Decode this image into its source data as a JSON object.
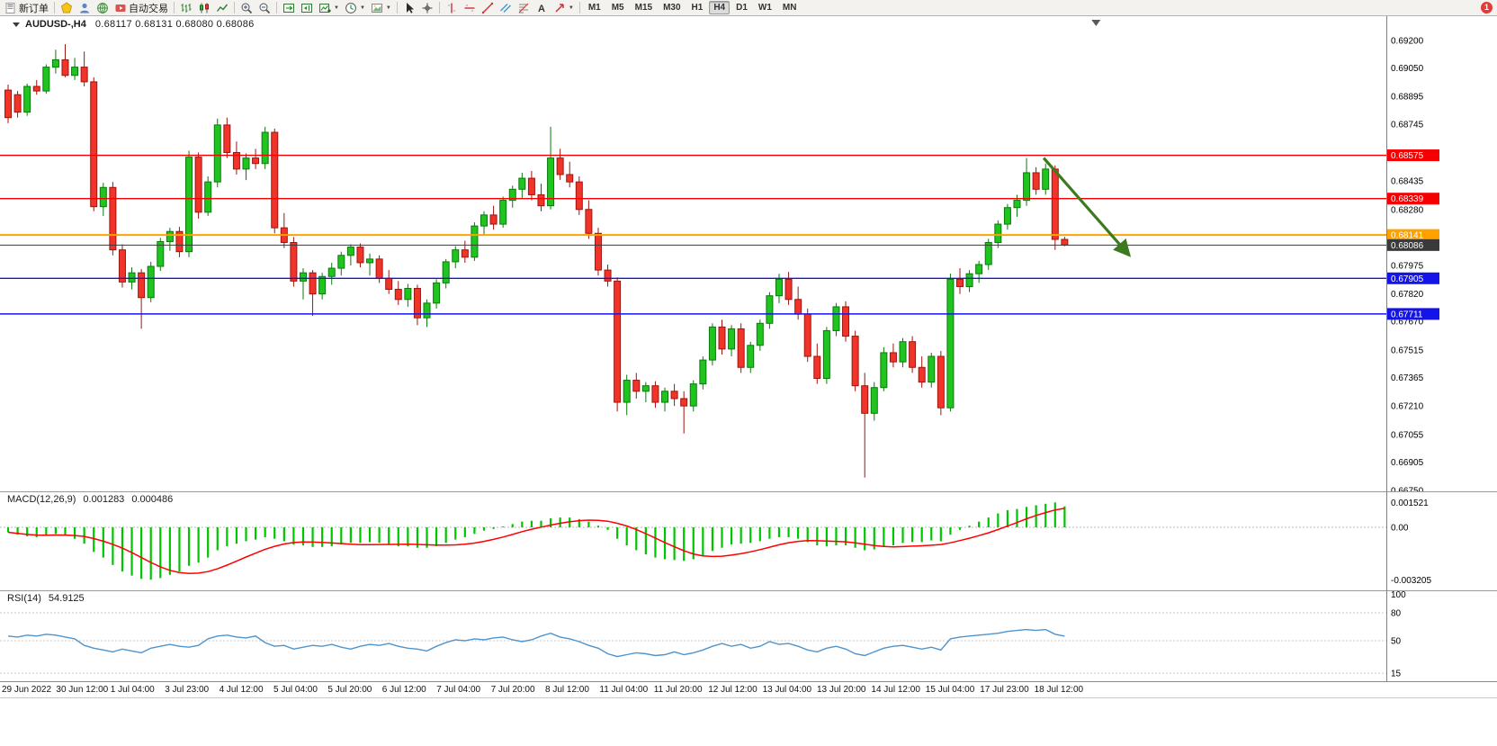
{
  "window": {
    "badge_count": "1",
    "badge_color": "#e53935"
  },
  "toolbar": {
    "items": [
      {
        "type": "button",
        "name": "new-order-button",
        "icon": "new-order-icon",
        "label": "新订单"
      },
      {
        "type": "sep"
      },
      {
        "type": "button",
        "name": "metaeditor-button",
        "icon": "editor-icon"
      },
      {
        "type": "button",
        "name": "navigator-button",
        "icon": "navigator-icon"
      },
      {
        "type": "button",
        "name": "terminal-button",
        "icon": "terminal-icon"
      },
      {
        "type": "button",
        "name": "autotrading-button",
        "icon": "autotrading-icon",
        "label": "自动交易"
      },
      {
        "type": "sep"
      },
      {
        "type": "button",
        "name": "bar-chart-button",
        "icon": "bar-chart-icon"
      },
      {
        "type": "button",
        "name": "candlestick-chart-button",
        "icon": "candlestick-icon"
      },
      {
        "type": "button",
        "name": "line-chart-button",
        "icon": "line-chart-icon"
      },
      {
        "type": "sep"
      },
      {
        "type": "button",
        "name": "zoom-in-button",
        "icon": "zoom-in-icon"
      },
      {
        "type": "button",
        "name": "zoom-out-button",
        "icon": "zoom-out-icon"
      },
      {
        "type": "sep"
      },
      {
        "type": "button",
        "name": "auto-scroll-button",
        "icon": "auto-scroll-icon"
      },
      {
        "type": "button",
        "name": "chart-shift-button",
        "icon": "chart-shift-icon"
      },
      {
        "type": "button",
        "name": "indicators-button",
        "icon": "indicators-icon",
        "dropdown": true
      },
      {
        "type": "button",
        "name": "periods-button",
        "icon": "periods-icon",
        "dropdown": true
      },
      {
        "type": "button",
        "name": "templates-button",
        "icon": "templates-icon",
        "dropdown": true
      },
      {
        "type": "sep"
      },
      {
        "type": "button",
        "name": "cursor-button",
        "icon": "cursor-icon"
      },
      {
        "type": "button",
        "name": "crosshair-button",
        "icon": "crosshair-icon"
      },
      {
        "type": "sep"
      },
      {
        "type": "button",
        "name": "vertical-line-button",
        "icon": "vline-icon"
      },
      {
        "type": "button",
        "name": "horizontal-line-button",
        "icon": "hline-icon"
      },
      {
        "type": "button",
        "name": "trendline-button",
        "icon": "trendline-icon"
      },
      {
        "type": "button",
        "name": "channel-button",
        "icon": "channel-icon"
      },
      {
        "type": "button",
        "name": "fibonacci-button",
        "icon": "fibonacci-icon"
      },
      {
        "type": "button",
        "name": "text-button",
        "icon": "text-icon"
      },
      {
        "type": "button",
        "name": "arrows-button",
        "icon": "arrows-icon",
        "dropdown": true
      },
      {
        "type": "sep"
      }
    ],
    "timeframes": [
      "M1",
      "M5",
      "M15",
      "M30",
      "H1",
      "H4",
      "D1",
      "W1",
      "MN"
    ],
    "active_timeframe": "H4"
  },
  "chart": {
    "title": "AUDUSD-,H4",
    "ohlc": "0.68117  0.68131  0.68080  0.68086"
  },
  "chart_data": {
    "type": "candlestick",
    "symbol": "AUDUSD",
    "period": "H4",
    "current_ohlc": {
      "open": 0.68117,
      "high": 0.68131,
      "low": 0.6808,
      "close": 0.68086
    },
    "colors": {
      "up": "#1fc41f",
      "up_stroke": "#0b7a0b",
      "down": "#f1342a",
      "down_stroke": "#9e150e",
      "macd": "#00c400",
      "macd_signal": "#ff0000",
      "rsi": "#4f94cd",
      "arrow": "#3d7a1f"
    },
    "price_axis": {
      "labels": [
        "0.69200",
        "0.69050",
        "0.68895",
        "0.68745",
        "0.68435",
        "0.68280",
        "0.67975",
        "0.67820",
        "0.67670",
        "0.67515",
        "0.67365",
        "0.67210",
        "0.67055",
        "0.66905",
        "0.66750"
      ]
    },
    "hlines": [
      {
        "name": "resistance-line-1",
        "price": 0.68575,
        "label": "0.68575",
        "color": "#f40000",
        "width": 1.4,
        "current": false
      },
      {
        "name": "resistance-line-2",
        "price": 0.68339,
        "label": "0.68339",
        "color": "#f40000",
        "width": 1.4,
        "current": false
      },
      {
        "name": "pivot-line",
        "price": 0.68141,
        "label": "0.68141",
        "color": "#ffa200",
        "width": 2,
        "current": false
      },
      {
        "name": "current-price-line",
        "price": 0.68086,
        "label": "0.68086",
        "color": "#3a3a3a",
        "width": 1,
        "current": true
      },
      {
        "name": "support-line-1",
        "price": 0.67905,
        "label": "0.67905",
        "color": "#1414e8",
        "width": 1.4,
        "current": false
      },
      {
        "name": "support-line-2",
        "price": 0.67711,
        "label": "0.67711",
        "color": "#1414e8",
        "width": 1.4,
        "current": false
      }
    ],
    "candles": [
      [
        0.6893,
        0.6896,
        0.6875,
        0.6878
      ],
      [
        0.68905,
        0.68925,
        0.6878,
        0.6881
      ],
      [
        0.6881,
        0.68965,
        0.6879,
        0.6895
      ],
      [
        0.6895,
        0.68985,
        0.68905,
        0.68925
      ],
      [
        0.68925,
        0.6907,
        0.6891,
        0.69055
      ],
      [
        0.69055,
        0.6915,
        0.6902,
        0.69095
      ],
      [
        0.69095,
        0.6918,
        0.69,
        0.6901
      ],
      [
        0.6901,
        0.69105,
        0.68985,
        0.69055
      ],
      [
        0.69055,
        0.6914,
        0.6895,
        0.68975
      ],
      [
        0.68975,
        0.69,
        0.6827,
        0.68295
      ],
      [
        0.68295,
        0.68425,
        0.68245,
        0.684
      ],
      [
        0.684,
        0.6843,
        0.6803,
        0.6806
      ],
      [
        0.6806,
        0.6809,
        0.67855,
        0.67885
      ],
      [
        0.67885,
        0.67965,
        0.67845,
        0.67935
      ],
      [
        0.67935,
        0.67955,
        0.6763,
        0.678
      ],
      [
        0.678,
        0.67995,
        0.67775,
        0.6797
      ],
      [
        0.6797,
        0.68125,
        0.67945,
        0.68105
      ],
      [
        0.68105,
        0.6818,
        0.68055,
        0.6816
      ],
      [
        0.6816,
        0.68185,
        0.6802,
        0.6805
      ],
      [
        0.6805,
        0.686,
        0.6802,
        0.68565
      ],
      [
        0.68565,
        0.6859,
        0.6823,
        0.68265
      ],
      [
        0.68265,
        0.6846,
        0.68245,
        0.6843
      ],
      [
        0.6843,
        0.68775,
        0.684,
        0.6874
      ],
      [
        0.6874,
        0.6878,
        0.6856,
        0.6859
      ],
      [
        0.6859,
        0.6865,
        0.6847,
        0.685
      ],
      [
        0.685,
        0.68585,
        0.6844,
        0.6856
      ],
      [
        0.6856,
        0.6861,
        0.685,
        0.6853
      ],
      [
        0.6853,
        0.6873,
        0.685,
        0.687
      ],
      [
        0.687,
        0.6872,
        0.6815,
        0.6818
      ],
      [
        0.6818,
        0.6826,
        0.6807,
        0.681
      ],
      [
        0.681,
        0.6813,
        0.6786,
        0.6789
      ],
      [
        0.6789,
        0.6796,
        0.6779,
        0.67935
      ],
      [
        0.67935,
        0.6795,
        0.677,
        0.6782
      ],
      [
        0.6782,
        0.67935,
        0.6779,
        0.67915
      ],
      [
        0.67915,
        0.6799,
        0.6787,
        0.6796
      ],
      [
        0.6796,
        0.6805,
        0.6792,
        0.6803
      ],
      [
        0.6803,
        0.6809,
        0.67975,
        0.68075
      ],
      [
        0.68075,
        0.68095,
        0.67965,
        0.6799
      ],
      [
        0.6799,
        0.6804,
        0.6792,
        0.6801
      ],
      [
        0.6801,
        0.6803,
        0.6788,
        0.67905
      ],
      [
        0.67905,
        0.6795,
        0.6782,
        0.67845
      ],
      [
        0.67845,
        0.6789,
        0.6776,
        0.6779
      ],
      [
        0.6779,
        0.67875,
        0.6775,
        0.6785
      ],
      [
        0.6785,
        0.6787,
        0.6765,
        0.6769
      ],
      [
        0.6769,
        0.6779,
        0.6764,
        0.6777
      ],
      [
        0.6777,
        0.679,
        0.6774,
        0.6788
      ],
      [
        0.6788,
        0.6801,
        0.6785,
        0.67995
      ],
      [
        0.67995,
        0.6808,
        0.6796,
        0.6806
      ],
      [
        0.6806,
        0.6811,
        0.6799,
        0.6802
      ],
      [
        0.6802,
        0.6821,
        0.68,
        0.6819
      ],
      [
        0.6819,
        0.6827,
        0.6814,
        0.6825
      ],
      [
        0.6825,
        0.683,
        0.6817,
        0.682
      ],
      [
        0.682,
        0.6835,
        0.6818,
        0.6833
      ],
      [
        0.6833,
        0.6841,
        0.6829,
        0.6839
      ],
      [
        0.6839,
        0.6848,
        0.6834,
        0.6845
      ],
      [
        0.6845,
        0.6849,
        0.6833,
        0.6836
      ],
      [
        0.6836,
        0.6842,
        0.6827,
        0.683
      ],
      [
        0.683,
        0.6873,
        0.6828,
        0.6856
      ],
      [
        0.6856,
        0.6861,
        0.6844,
        0.6847
      ],
      [
        0.6847,
        0.6854,
        0.684,
        0.6843
      ],
      [
        0.6843,
        0.6846,
        0.6825,
        0.6828
      ],
      [
        0.6828,
        0.6833,
        0.6812,
        0.6815
      ],
      [
        0.6815,
        0.6818,
        0.6792,
        0.6795
      ],
      [
        0.6795,
        0.6798,
        0.6786,
        0.6789
      ],
      [
        0.6789,
        0.6791,
        0.6718,
        0.6723
      ],
      [
        0.6723,
        0.6738,
        0.6716,
        0.6735
      ],
      [
        0.6735,
        0.6739,
        0.6725,
        0.6729
      ],
      [
        0.6729,
        0.6734,
        0.6723,
        0.6732
      ],
      [
        0.6732,
        0.67345,
        0.672,
        0.6723
      ],
      [
        0.6723,
        0.6731,
        0.6718,
        0.6729
      ],
      [
        0.6729,
        0.6733,
        0.6721,
        0.6725
      ],
      [
        0.6725,
        0.6729,
        0.6706,
        0.6721
      ],
      [
        0.6721,
        0.6735,
        0.6718,
        0.6733
      ],
      [
        0.6733,
        0.6748,
        0.673,
        0.6746
      ],
      [
        0.6746,
        0.6766,
        0.6743,
        0.6764
      ],
      [
        0.6764,
        0.6768,
        0.6749,
        0.6752
      ],
      [
        0.6752,
        0.6765,
        0.6748,
        0.6763
      ],
      [
        0.6763,
        0.6766,
        0.6739,
        0.6742
      ],
      [
        0.6742,
        0.6756,
        0.6739,
        0.6754
      ],
      [
        0.6754,
        0.6768,
        0.6751,
        0.6766
      ],
      [
        0.6766,
        0.6783,
        0.6763,
        0.6781
      ],
      [
        0.6781,
        0.6793,
        0.6777,
        0.679
      ],
      [
        0.679,
        0.6794,
        0.6776,
        0.6779
      ],
      [
        0.6779,
        0.6786,
        0.6768,
        0.6771
      ],
      [
        0.6771,
        0.6774,
        0.6745,
        0.6748
      ],
      [
        0.6748,
        0.6755,
        0.6733,
        0.6736
      ],
      [
        0.6736,
        0.6764,
        0.6733,
        0.6762
      ],
      [
        0.6762,
        0.6777,
        0.6759,
        0.6775
      ],
      [
        0.6775,
        0.6778,
        0.6756,
        0.6759
      ],
      [
        0.6759,
        0.6762,
        0.6729,
        0.6732
      ],
      [
        0.6732,
        0.6739,
        0.6682,
        0.6717
      ],
      [
        0.6717,
        0.6734,
        0.6713,
        0.6731
      ],
      [
        0.6731,
        0.6753,
        0.6729,
        0.675
      ],
      [
        0.675,
        0.6755,
        0.6742,
        0.6745
      ],
      [
        0.6745,
        0.6758,
        0.6742,
        0.6756
      ],
      [
        0.6756,
        0.6759,
        0.6739,
        0.6742
      ],
      [
        0.6742,
        0.6748,
        0.6731,
        0.6734
      ],
      [
        0.6734,
        0.675,
        0.6731,
        0.6748
      ],
      [
        0.6748,
        0.6751,
        0.6716,
        0.672
      ],
      [
        0.672,
        0.6793,
        0.6718,
        0.679
      ],
      [
        0.679,
        0.6796,
        0.6782,
        0.6786
      ],
      [
        0.6786,
        0.6795,
        0.6783,
        0.6793
      ],
      [
        0.6793,
        0.68,
        0.6788,
        0.6798
      ],
      [
        0.6798,
        0.6812,
        0.6795,
        0.681
      ],
      [
        0.681,
        0.6822,
        0.6807,
        0.682
      ],
      [
        0.682,
        0.6831,
        0.6817,
        0.6829
      ],
      [
        0.6829,
        0.6836,
        0.6824,
        0.6833
      ],
      [
        0.6833,
        0.6856,
        0.683,
        0.6848
      ],
      [
        0.6848,
        0.6851,
        0.6836,
        0.6839
      ],
      [
        0.6839,
        0.6853,
        0.6836,
        0.685
      ],
      [
        0.685,
        0.6852,
        0.6806,
        0.68117
      ],
      [
        0.68117,
        0.68131,
        0.6808,
        0.68086
      ]
    ],
    "shift_marker_bar": 114.3,
    "annotation_arrow": {
      "from_bar": 108.8,
      "from_price": 0.6856,
      "to_bar": 117.8,
      "to_price": 0.6803
    },
    "macd": {
      "title": "MACD(12,26,9)",
      "value_main": "0.001283",
      "value_signal": "0.000486",
      "scale_labels": [
        {
          "label": "0.001521",
          "value": 0.001521
        },
        {
          "label": "0.00",
          "value": 0
        },
        {
          "label": "-0.003205",
          "value": -0.003205
        }
      ],
      "hist": [
        -0.0003,
        -0.00045,
        -0.00055,
        -0.0006,
        -0.0005,
        -0.0004,
        -0.0005,
        -0.0007,
        -0.001,
        -0.0015,
        -0.00185,
        -0.0023,
        -0.0027,
        -0.00295,
        -0.00315,
        -0.0032,
        -0.0031,
        -0.0029,
        -0.0027,
        -0.00235,
        -0.00215,
        -0.00185,
        -0.0014,
        -0.00115,
        -0.001,
        -0.00085,
        -0.00075,
        -0.0006,
        -0.0007,
        -0.00085,
        -0.00105,
        -0.0011,
        -0.0012,
        -0.0012,
        -0.00115,
        -0.00105,
        -0.00095,
        -0.00095,
        -0.0009,
        -0.00095,
        -0.00105,
        -0.00115,
        -0.00115,
        -0.00125,
        -0.00125,
        -0.00115,
        -0.00095,
        -0.00075,
        -0.0006,
        -0.0004,
        -0.0002,
        -0.0001,
        5e-05,
        0.0002,
        0.00035,
        0.0004,
        0.0004,
        0.00055,
        0.0006,
        0.0006,
        0.0005,
        0.00035,
        0.0001,
        -0.00015,
        -0.0007,
        -0.0011,
        -0.0014,
        -0.00165,
        -0.00185,
        -0.00195,
        -0.002,
        -0.00205,
        -0.00195,
        -0.00175,
        -0.00145,
        -0.00125,
        -0.00105,
        -0.001,
        -0.00095,
        -0.00085,
        -0.0007,
        -0.0006,
        -0.0006,
        -0.0007,
        -0.0009,
        -0.0011,
        -0.00115,
        -0.0011,
        -0.0011,
        -0.00125,
        -0.0014,
        -0.00135,
        -0.0012,
        -0.0011,
        -0.00095,
        -0.0009,
        -0.0009,
        -0.0008,
        -0.00085,
        -0.00045,
        -0.00015,
        0.0001,
        0.00035,
        0.0006,
        0.00085,
        0.00105,
        0.00112,
        0.00125,
        0.00135,
        0.00144,
        0.001521,
        0.001283
      ]
    },
    "rsi": {
      "title": "RSI(14)",
      "value": "54.9125",
      "levels": [
        80,
        50,
        15
      ],
      "scale_labels": [
        {
          "label": "100",
          "value": 100
        },
        {
          "label": "80",
          "value": 80
        },
        {
          "label": "50",
          "value": 50
        },
        {
          "label": "15",
          "value": 15
        }
      ],
      "series": [
        55,
        54,
        56,
        55,
        57,
        56,
        54,
        52,
        45,
        42,
        40,
        38,
        41,
        39,
        37,
        42,
        44,
        46,
        44,
        43,
        45,
        52,
        55,
        56,
        54,
        53,
        55,
        48,
        44,
        45,
        41,
        43,
        45,
        44,
        46,
        43,
        41,
        44,
        46,
        45,
        47,
        44,
        42,
        41,
        39,
        44,
        48,
        51,
        50,
        52,
        51,
        53,
        54,
        51,
        49,
        51,
        55,
        58,
        54,
        52,
        49,
        45,
        42,
        36,
        33,
        35,
        37,
        36,
        34,
        35,
        38,
        35,
        37,
        40,
        44,
        47,
        44,
        46,
        42,
        44,
        49,
        46,
        47,
        44,
        40,
        38,
        42,
        44,
        41,
        36,
        34,
        38,
        42,
        44,
        45,
        43,
        41,
        43,
        40,
        52,
        54,
        55,
        56,
        57,
        58,
        60,
        61,
        62,
        61,
        62,
        57,
        54.9
      ]
    },
    "time_axis": [
      "29 Jun 2022",
      "30 Jun 12:00",
      "1 Jul 04:00",
      "3 Jul 23:00",
      "4 Jul 12:00",
      "5 Jul 04:00",
      "5 Jul 20:00",
      "6 Jul 12:00",
      "7 Jul 04:00",
      "7 Jul 20:00",
      "8 Jul 12:00",
      "11 Jul 04:00",
      "11 Jul 20:00",
      "12 Jul 12:00",
      "13 Jul 04:00",
      "13 Jul 20:00",
      "14 Jul 12:00",
      "15 Jul 04:00",
      "17 Jul 23:00",
      "18 Jul 12:00"
    ]
  }
}
